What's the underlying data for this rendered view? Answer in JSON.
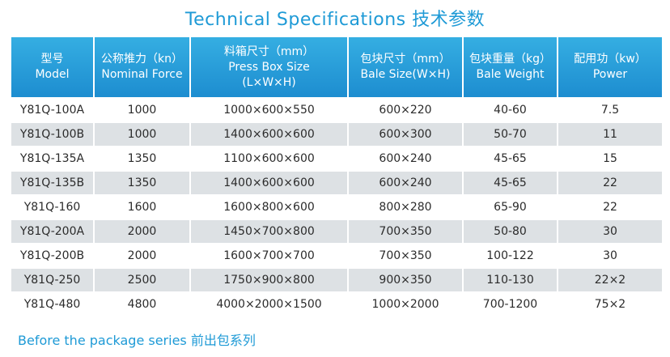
{
  "title": "Technical Specifications 技术参数",
  "table": {
    "headers": [
      {
        "zh": "型号",
        "en": "Model",
        "en2": ""
      },
      {
        "zh": "公称推力（kn）",
        "en": "Nominal Force",
        "en2": ""
      },
      {
        "zh": "料箱尺寸（mm）",
        "en": "Press Box Size",
        "en2": "(L×W×H)"
      },
      {
        "zh": "包块尺寸（mm）",
        "en": "Bale Size(W×H)",
        "en2": ""
      },
      {
        "zh": "包块重量（kg）",
        "en": "Bale Weight",
        "en2": ""
      },
      {
        "zh": "配用功（kw）",
        "en": "Power",
        "en2": ""
      }
    ],
    "rows": [
      [
        "Y81Q-100A",
        "1000",
        "1000×600×550",
        "600×220",
        "40-60",
        "7.5"
      ],
      [
        "Y81Q-100B",
        "1000",
        "1400×600×600",
        "600×300",
        "50-70",
        "11"
      ],
      [
        "Y81Q-135A",
        "1350",
        "1100×600×600",
        "600×240",
        "45-65",
        "15"
      ],
      [
        "Y81Q-135B",
        "1350",
        "1400×600×600",
        "600×240",
        "45-65",
        "22"
      ],
      [
        "Y81Q-160",
        "1600",
        "1600×800×600",
        "800×280",
        "65-90",
        "22"
      ],
      [
        "Y81Q-200A",
        "2000",
        "1450×700×800",
        "700×350",
        "50-80",
        "30"
      ],
      [
        "Y81Q-200B",
        "2000",
        "1600×700×700",
        "700×350",
        "100-122",
        "30"
      ],
      [
        "Y81Q-250",
        "2500",
        "1750×900×800",
        "900×350",
        "110-130",
        "22×2"
      ],
      [
        "Y81Q-480",
        "4800",
        "4000×2000×1500",
        "1000×2000",
        "700-1200",
        "75×2"
      ]
    ]
  },
  "footer": "Before the package series 前出包系列"
}
